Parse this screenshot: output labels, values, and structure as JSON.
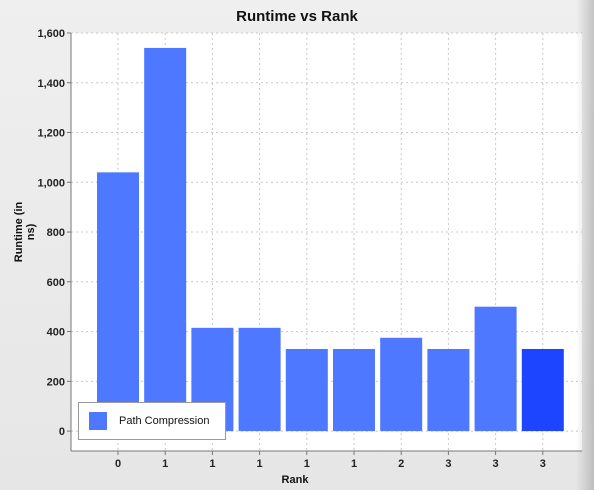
{
  "chart_data": {
    "type": "bar",
    "title": "Runtime vs Rank",
    "xlabel": "Rank",
    "ylabel": "Runtime (in ns)",
    "categories": [
      "0",
      "1",
      "1",
      "1",
      "1",
      "1",
      "2",
      "3",
      "3",
      "3"
    ],
    "series": [
      {
        "name": "Path Compression",
        "values": [
          1040,
          1540,
          415,
          415,
          330,
          330,
          375,
          330,
          500,
          330
        ]
      }
    ],
    "ylim": [
      -80,
      1600
    ],
    "yticks": [
      0,
      200,
      400,
      600,
      800,
      1000,
      1200,
      1400,
      1600
    ],
    "ytick_labels": [
      "0",
      "200",
      "400",
      "600",
      "800",
      "1,000",
      "1,200",
      "1,400",
      "1,600"
    ],
    "grid": true,
    "legend_position": "bottom-left",
    "colors": {
      "bar": "#4d78ff",
      "highlight_bar": "#1d45ff",
      "grid": "#c8c8c8",
      "plot_bg": "#ffffff"
    }
  }
}
